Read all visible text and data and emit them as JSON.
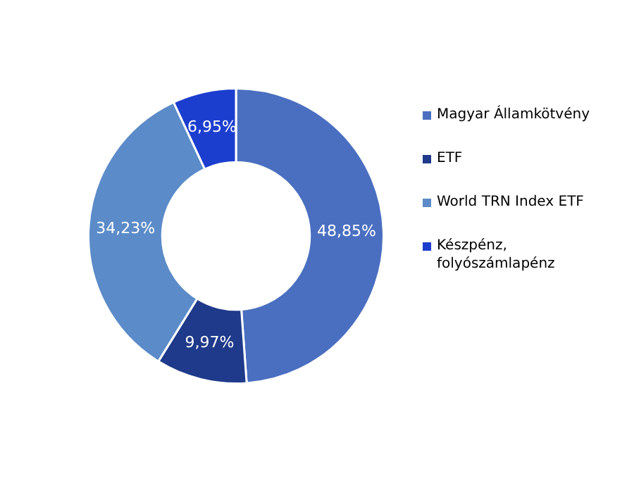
{
  "chart_data": {
    "type": "donut",
    "categories": [
      "Magyar Államkötvény",
      "ETF",
      "World TRN Index ETF",
      "Készpénz, folyószámlapénz"
    ],
    "values": [
      48.85,
      9.97,
      34.23,
      6.95
    ],
    "colors": [
      "#4a6fc0",
      "#1f3a8a",
      "#5b8bc8",
      "#1c3ecf"
    ],
    "value_labels": [
      "48,85%",
      "9,97%",
      "34,23%",
      "6,95%"
    ],
    "legend": "right"
  }
}
